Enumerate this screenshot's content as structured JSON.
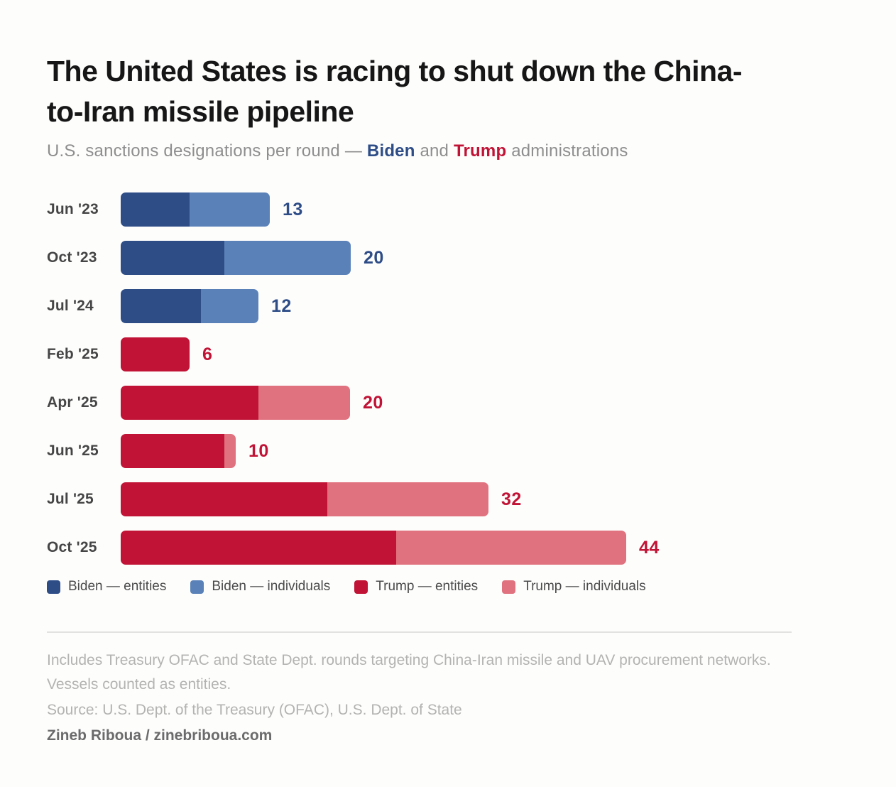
{
  "title": {
    "line1": "The United States is racing to shut down the China-",
    "line2": "to-Iran missile pipeline"
  },
  "subtitle": {
    "prefix": "U.S. sanctions designations per round — ",
    "biden": "Biden",
    "middle": " and ",
    "trump": "Trump",
    "suffix": " administrations"
  },
  "colors": {
    "biden_entities": "#2e4d87",
    "biden_individuals": "#5b82b8",
    "trump_entities": "#c11335",
    "trump_individuals": "#e0717e"
  },
  "chart_data": {
    "type": "bar",
    "orientation": "horizontal",
    "stacked": true,
    "title": "The United States is racing to shut down the China-to-Iran missile pipeline",
    "subtitle": "U.S. sanctions designations per round — Biden and Trump administrations",
    "categories": [
      "Jun '23",
      "Oct '23",
      "Jul '24",
      "Feb '25",
      "Apr '25",
      "Jun '25",
      "Jul '25",
      "Oct '25"
    ],
    "series": [
      {
        "name": "Biden — entities",
        "color": "#2e4d87",
        "values": [
          6,
          9,
          7,
          0,
          0,
          0,
          0,
          0
        ]
      },
      {
        "name": "Biden — individuals",
        "color": "#5b82b8",
        "values": [
          7,
          11,
          5,
          0,
          0,
          0,
          0,
          0
        ]
      },
      {
        "name": "Trump — entities",
        "color": "#c11335",
        "values": [
          0,
          0,
          0,
          6,
          12,
          9,
          18,
          24
        ]
      },
      {
        "name": "Trump — individuals",
        "color": "#e0717e",
        "values": [
          0,
          0,
          0,
          0,
          8,
          1,
          14,
          20
        ]
      }
    ],
    "totals": [
      13,
      20,
      12,
      6,
      20,
      10,
      32,
      44
    ],
    "xlim": [
      0,
      44
    ],
    "grid": false,
    "legend_position": "bottom",
    "rows": [
      {
        "label": "Jun '23",
        "admin": "biden",
        "entities": 6,
        "individuals": 7,
        "total": "13"
      },
      {
        "label": "Oct '23",
        "admin": "biden",
        "entities": 9,
        "individuals": 11,
        "total": "20"
      },
      {
        "label": "Jul '24",
        "admin": "biden",
        "entities": 7,
        "individuals": 5,
        "total": "12"
      },
      {
        "label": "Feb '25",
        "admin": "trump",
        "entities": 6,
        "individuals": 0,
        "total": "6"
      },
      {
        "label": "Apr '25",
        "admin": "trump",
        "entities": 12,
        "individuals": 8,
        "total": "20"
      },
      {
        "label": "Jun '25",
        "admin": "trump",
        "entities": 9,
        "individuals": 1,
        "total": "10"
      },
      {
        "label": "Jul '25",
        "admin": "trump",
        "entities": 18,
        "individuals": 14,
        "total": "32"
      },
      {
        "label": "Oct '25",
        "admin": "trump",
        "entities": 24,
        "individuals": 20,
        "total": "44"
      }
    ]
  },
  "legend": {
    "items": [
      {
        "label": "Biden — entities",
        "color": "#2e4d87"
      },
      {
        "label": "Biden — individuals",
        "color": "#5b82b8"
      },
      {
        "label": "Trump — entities",
        "color": "#c11335"
      },
      {
        "label": "Trump — individuals",
        "color": "#e0717e"
      }
    ]
  },
  "footer": {
    "note": "Includes Treasury OFAC and State Dept. rounds targeting China-Iran missile and UAV procurement networks. Vessels counted as entities.",
    "source": "Source: U.S. Dept. of the Treasury (OFAC), U.S. Dept. of State",
    "byline": "Zineb Riboua / zinebriboua.com"
  }
}
